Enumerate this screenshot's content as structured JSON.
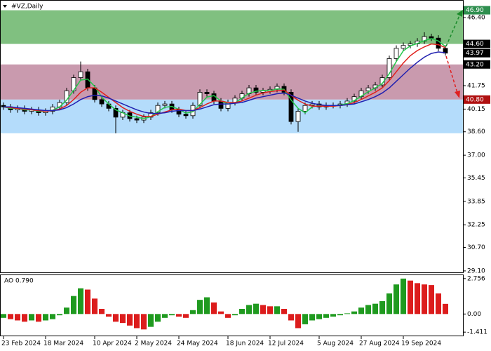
{
  "chart_data": [
    {
      "type": "candlestick",
      "title": "#VZ,Daily",
      "ylim": [
        29.0,
        47.6
      ],
      "yticks": [
        {
          "value": 46.4,
          "label": "46.40"
        },
        {
          "value": 41.75,
          "label": "41.75"
        },
        {
          "value": 40.15,
          "label": "40.15"
        },
        {
          "value": 38.6,
          "label": "38.60"
        },
        {
          "value": 37.0,
          "label": "37.00"
        },
        {
          "value": 35.45,
          "label": "35.45"
        },
        {
          "value": 33.85,
          "label": "33.85"
        },
        {
          "value": 32.25,
          "label": "32.25"
        },
        {
          "value": 30.7,
          "label": "30.70"
        },
        {
          "value": 29.1,
          "label": "29.10"
        }
      ],
      "zones": [
        {
          "from": 44.6,
          "to": 46.9,
          "color": "#80c080"
        },
        {
          "from": 40.8,
          "to": 43.2,
          "color": "#c99aae"
        },
        {
          "from": 38.5,
          "to": 40.8,
          "color": "#b4dcfb"
        }
      ],
      "levels": [
        {
          "value": 46.9,
          "label": "46.90",
          "color": "#2f8f4f"
        },
        {
          "value": 44.6,
          "label": "44.60",
          "color": "#000000"
        },
        {
          "value": 43.97,
          "label": "43.97",
          "color": "#000000"
        },
        {
          "value": 43.2,
          "label": "43.20",
          "color": "#000000"
        },
        {
          "value": 40.8,
          "label": "40.80",
          "color": "#b01010"
        }
      ],
      "up_color": "#ffffff",
      "down_color": "#000000",
      "open": [
        40.4,
        40.3,
        40.1,
        40.2,
        40.0,
        40.1,
        39.9,
        40.0,
        40.3,
        40.6,
        41.4,
        42.3,
        42.7,
        41.6,
        40.8,
        40.5,
        40.2,
        39.6,
        39.9,
        39.5,
        39.4,
        39.6,
        39.9,
        40.4,
        40.5,
        40.1,
        39.8,
        39.7,
        40.4,
        41.3,
        41.2,
        40.7,
        40.2,
        40.6,
        40.9,
        41.2,
        41.6,
        41.3,
        41.4,
        41.5,
        41.7,
        41.3,
        39.3,
        40.0,
        40.4,
        40.5,
        40.3,
        40.4,
        40.4,
        40.5,
        40.7,
        41.0,
        41.4,
        41.6,
        41.8,
        42.3,
        43.6,
        44.3,
        44.5,
        44.6,
        44.8,
        45.1,
        45.0,
        44.3
      ],
      "high": [
        40.6,
        40.5,
        40.4,
        40.4,
        40.3,
        40.3,
        40.2,
        40.5,
        40.8,
        41.6,
        42.5,
        43.4,
        42.9,
        41.8,
        41.0,
        40.7,
        40.4,
        40.1,
        40.1,
        39.7,
        39.8,
        40.1,
        40.6,
        40.7,
        40.7,
        40.3,
        40.0,
        40.6,
        41.5,
        41.5,
        41.4,
        40.9,
        40.8,
        41.1,
        41.4,
        41.8,
        41.8,
        41.6,
        41.7,
        41.9,
        41.9,
        41.5,
        40.2,
        40.6,
        40.7,
        40.7,
        40.6,
        40.6,
        40.7,
        40.9,
        41.2,
        41.6,
        41.8,
        42.0,
        42.5,
        43.8,
        44.5,
        44.7,
        44.8,
        45.0,
        45.4,
        45.3,
        45.2,
        44.5
      ],
      "low": [
        40.1,
        39.9,
        39.9,
        39.8,
        39.8,
        39.7,
        39.7,
        39.8,
        40.1,
        40.4,
        41.2,
        42.1,
        41.4,
        40.6,
        40.3,
        40.0,
        38.5,
        39.4,
        39.3,
        39.2,
        39.2,
        39.4,
        39.7,
        40.2,
        39.9,
        39.6,
        39.5,
        39.5,
        40.2,
        41.0,
        40.5,
        40.0,
        40.0,
        40.4,
        40.7,
        41.0,
        41.1,
        41.1,
        41.2,
        41.3,
        41.1,
        39.1,
        38.6,
        39.8,
        40.2,
        40.1,
        40.1,
        40.2,
        40.2,
        40.3,
        40.5,
        40.8,
        41.2,
        41.4,
        41.6,
        42.1,
        43.4,
        44.1,
        44.3,
        44.4,
        44.6,
        44.8,
        44.1,
        43.8
      ],
      "close": [
        40.3,
        40.1,
        40.2,
        40.0,
        40.1,
        39.9,
        40.0,
        40.3,
        40.6,
        41.4,
        42.3,
        42.7,
        41.6,
        40.8,
        40.5,
        40.2,
        39.6,
        39.9,
        39.5,
        39.4,
        39.6,
        39.9,
        40.4,
        40.5,
        40.1,
        39.8,
        39.7,
        40.4,
        41.3,
        41.2,
        40.7,
        40.2,
        40.6,
        40.9,
        41.2,
        41.6,
        41.3,
        41.4,
        41.5,
        41.7,
        41.3,
        39.3,
        40.0,
        40.4,
        40.5,
        40.3,
        40.4,
        40.4,
        40.5,
        40.7,
        41.0,
        41.4,
        41.6,
        41.8,
        42.3,
        43.6,
        44.3,
        44.5,
        44.6,
        44.8,
        45.1,
        45.0,
        44.3,
        43.97
      ],
      "lines": [
        {
          "color": "#22c84a",
          "values": [
            40.3,
            40.2,
            40.2,
            40.1,
            40.1,
            40.0,
            40.0,
            40.07,
            40.3,
            40.77,
            41.43,
            42.13,
            42.2,
            41.7,
            40.97,
            40.5,
            40.1,
            39.9,
            39.67,
            39.6,
            39.5,
            39.63,
            39.97,
            40.27,
            40.33,
            40.13,
            39.87,
            39.97,
            40.47,
            40.97,
            41.07,
            40.7,
            40.5,
            40.57,
            40.9,
            41.23,
            41.37,
            41.43,
            41.4,
            41.53,
            41.5,
            40.77,
            40.2,
            39.9,
            40.3,
            40.4,
            40.4,
            40.37,
            40.43,
            40.53,
            40.73,
            41.03,
            41.33,
            41.6,
            41.9,
            42.57,
            43.4,
            44.13,
            44.47,
            44.63,
            44.83,
            44.97,
            44.8,
            44.42
          ]
        },
        {
          "color": "#e0201c",
          "values": [
            40.3,
            40.25,
            40.2,
            40.15,
            40.1,
            40.05,
            40.0,
            40.05,
            40.15,
            40.4,
            40.8,
            41.3,
            41.6,
            41.6,
            41.3,
            40.95,
            40.6,
            40.25,
            40.0,
            39.8,
            39.65,
            39.65,
            39.8,
            39.95,
            40.1,
            40.15,
            40.05,
            40.05,
            40.25,
            40.5,
            40.7,
            40.7,
            40.6,
            40.6,
            40.7,
            40.9,
            41.1,
            41.25,
            41.35,
            41.4,
            41.45,
            41.1,
            40.75,
            40.5,
            40.35,
            40.35,
            40.35,
            40.35,
            40.4,
            40.45,
            40.6,
            40.8,
            41.05,
            41.3,
            41.6,
            42.1,
            42.7,
            43.3,
            43.8,
            44.15,
            44.4,
            44.6,
            44.55,
            44.35
          ]
        },
        {
          "color": "#2020b0",
          "values": [
            40.3,
            40.3,
            40.25,
            40.2,
            40.15,
            40.1,
            40.05,
            40.05,
            40.1,
            40.25,
            40.5,
            40.8,
            41.0,
            41.1,
            41.05,
            40.9,
            40.7,
            40.5,
            40.3,
            40.1,
            39.95,
            39.85,
            39.85,
            39.9,
            40.0,
            40.05,
            40.05,
            40.05,
            40.15,
            40.3,
            40.45,
            40.5,
            40.5,
            40.55,
            40.6,
            40.75,
            40.9,
            41.0,
            41.1,
            41.2,
            41.25,
            41.1,
            40.9,
            40.7,
            40.55,
            40.45,
            40.4,
            40.4,
            40.4,
            40.45,
            40.5,
            40.65,
            40.8,
            41.0,
            41.25,
            41.6,
            42.05,
            42.5,
            42.95,
            43.35,
            43.7,
            43.95,
            44.05,
            44.0
          ]
        }
      ]
    },
    {
      "type": "bar",
      "title": "AO 0.790",
      "ylim": [
        -1.676,
        3.02
      ],
      "yticks": [
        2.756,
        {
          "value": 0,
          "label": "0.00"
        },
        -1.411
      ],
      "up_color": "#1f9a1f",
      "down_color": "#dc1c1c",
      "values": [
        -0.3,
        -0.4,
        -0.5,
        -0.6,
        -0.5,
        -0.6,
        -0.5,
        -0.4,
        -0.1,
        0.5,
        1.4,
        2.0,
        1.9,
        1.2,
        0.4,
        -0.2,
        -0.6,
        -0.7,
        -0.9,
        -1.1,
        -1.2,
        -1.0,
        -0.6,
        -0.3,
        -0.1,
        -0.2,
        -0.3,
        0.3,
        1.1,
        1.3,
        0.9,
        0.2,
        -0.3,
        -0.1,
        0.4,
        0.7,
        0.8,
        0.7,
        0.6,
        0.6,
        0.4,
        -0.5,
        -1.1,
        -0.8,
        -0.5,
        -0.4,
        -0.3,
        -0.2,
        -0.1,
        0.05,
        0.2,
        0.5,
        0.7,
        0.8,
        1.0,
        1.6,
        2.3,
        2.756,
        2.6,
        2.4,
        2.3,
        2.25,
        1.6,
        0.79
      ],
      "categories": [
        "23 Feb 2024",
        null,
        null,
        null,
        null,
        null,
        "18 Mar 2024",
        null,
        null,
        null,
        null,
        null,
        null,
        "10 Apr 2024",
        null,
        null,
        null,
        null,
        null,
        "2 May 2024",
        null,
        null,
        null,
        null,
        null,
        "24 May 2024",
        null,
        null,
        null,
        null,
        null,
        null,
        "18 Jun 2024",
        null,
        null,
        null,
        null,
        null,
        "12 Jul 2024",
        null,
        null,
        null,
        null,
        null,
        null,
        "5 Aug 2024",
        null,
        null,
        null,
        null,
        null,
        "27 Aug 2024",
        null,
        null,
        null,
        null,
        null,
        "19 Sep 2024",
        null,
        null,
        null,
        null,
        null,
        null
      ]
    }
  ]
}
